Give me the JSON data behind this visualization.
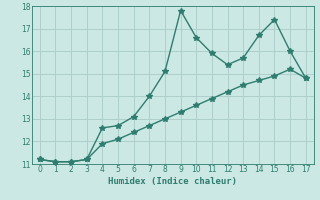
{
  "x": [
    0,
    1,
    2,
    3,
    4,
    5,
    6,
    7,
    8,
    9,
    10,
    11,
    12,
    13,
    14,
    15,
    16,
    17
  ],
  "upper_y": [
    11.2,
    11.1,
    11.1,
    11.2,
    12.6,
    12.7,
    13.1,
    14.0,
    15.1,
    17.8,
    16.6,
    15.9,
    15.4,
    15.7,
    16.7,
    17.4,
    16.0,
    14.8
  ],
  "lower_y": [
    11.2,
    11.1,
    11.1,
    11.2,
    11.9,
    12.1,
    12.4,
    12.7,
    13.0,
    13.3,
    13.6,
    13.9,
    14.2,
    14.5,
    14.7,
    14.9,
    15.2,
    14.8
  ],
  "line_color": "#2e7d6e",
  "bg_color": "#cce8e4",
  "grid_color": "#aecfcb",
  "xlabel": "Humidex (Indice chaleur)",
  "ylim": [
    11,
    18
  ],
  "xlim": [
    -0.5,
    17.5
  ],
  "yticks": [
    11,
    12,
    13,
    14,
    15,
    16,
    17,
    18
  ],
  "xticks": [
    0,
    1,
    2,
    3,
    4,
    5,
    6,
    7,
    8,
    9,
    10,
    11,
    12,
    13,
    14,
    15,
    16,
    17
  ],
  "marker": "*",
  "markersize": 4,
  "linewidth": 1.0
}
